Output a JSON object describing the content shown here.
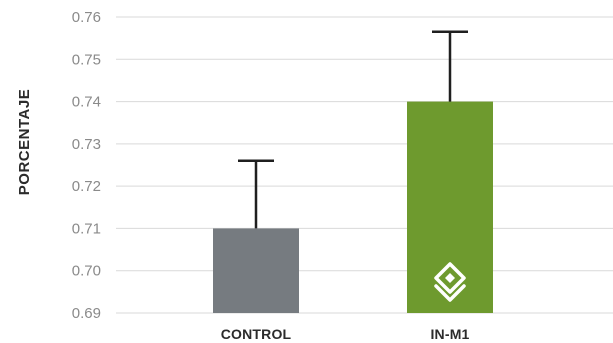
{
  "chart_data": {
    "type": "bar",
    "title": "",
    "xlabel": "",
    "ylabel": "PORCENTAJE",
    "categories": [
      "CONTROL",
      "IN-M1"
    ],
    "values": [
      0.71,
      0.74
    ],
    "error_upper": [
      0.726,
      0.7565
    ],
    "ylim": [
      0.69,
      0.76
    ],
    "yticks": [
      0.69,
      0.7,
      0.71,
      0.72,
      0.73,
      0.74,
      0.75,
      0.76
    ],
    "ytick_labels": [
      "0.69",
      "0.70",
      "0.71",
      "0.72",
      "0.73",
      "0.74",
      "0.75",
      "0.76"
    ],
    "grid": true,
    "colors": [
      "#767b80",
      "#6e9a2e"
    ],
    "bar_icon": "diamond-logo-icon"
  }
}
